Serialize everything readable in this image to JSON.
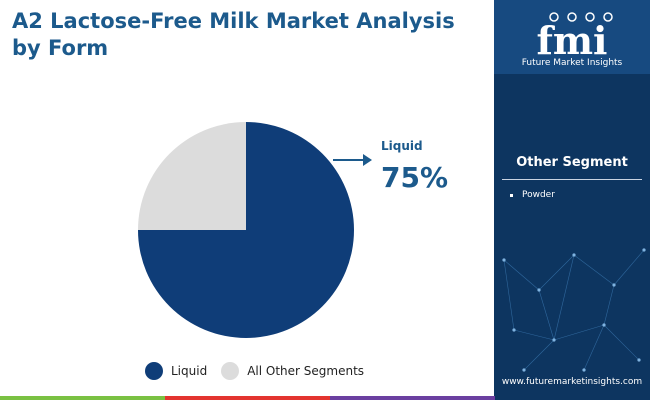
{
  "header": {
    "title": "A2 Lactose-Free Milk Market Analysis by Form"
  },
  "chart_data": {
    "type": "pie",
    "categories": [
      "Liquid",
      "All Other Segments"
    ],
    "values": [
      75,
      25
    ],
    "colors": [
      "#0f3d78",
      "#dcdcdc"
    ],
    "start_angle_deg": 0,
    "direction": "clockwise",
    "legend": {
      "placement": "bottom",
      "entries": [
        "Liquid",
        "All Other Segments"
      ]
    },
    "callout": {
      "label": "Liquid",
      "value": "75%"
    }
  },
  "sidebar": {
    "brand": "fmi",
    "brand_name": "Future Market Insights",
    "other_heading": "Other Segment",
    "other_items": [
      "Powder"
    ],
    "website": "www.futuremarketinsights.com"
  },
  "colors": {
    "title": "#1c5a8c",
    "panel": "#0d3560",
    "logo_box": "#174a80",
    "stripe": [
      "#7ac142",
      "#e3342f",
      "#6b3fa0"
    ]
  }
}
